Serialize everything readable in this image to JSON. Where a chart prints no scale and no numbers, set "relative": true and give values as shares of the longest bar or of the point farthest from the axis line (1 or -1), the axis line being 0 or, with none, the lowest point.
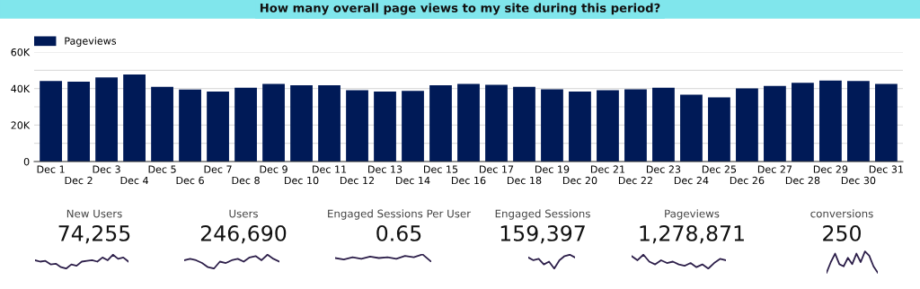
{
  "chart_data": [
    {
      "type": "bar",
      "title": "How many overall page views to my site during this period?",
      "categories": [
        "Dec 1",
        "Dec 2",
        "Dec 3",
        "Dec 4",
        "Dec 5",
        "Dec 6",
        "Dec 7",
        "Dec 8",
        "Dec 9",
        "Dec 10",
        "Dec 11",
        "Dec 12",
        "Dec 13",
        "Dec 14",
        "Dec 15",
        "Dec 16",
        "Dec 17",
        "Dec 18",
        "Dec 19",
        "Dec 20",
        "Dec 21",
        "Dec 22",
        "Dec 23",
        "Dec 24",
        "Dec 25",
        "Dec 26",
        "Dec 27",
        "Dec 28",
        "Dec 29",
        "Dec 30",
        "Dec 31"
      ],
      "series": [
        {
          "name": "Pageviews",
          "color": "#001a57",
          "values": [
            44200,
            43800,
            46100,
            47700,
            41000,
            39500,
            38300,
            40500,
            42600,
            41800,
            41800,
            39100,
            38300,
            38700,
            41800,
            42600,
            42100,
            41000,
            39600,
            38300,
            39100,
            39600,
            40500,
            36700,
            35200,
            40100,
            41400,
            43100,
            44400,
            44100,
            42600
          ]
        }
      ],
      "ylim": [
        0,
        60000
      ],
      "yticks": [
        0,
        {
          "value": 10000,
          "label": null
        },
        {
          "value": 20000,
          "label": "20K"
        },
        {
          "value": 30000,
          "label": null
        },
        {
          "value": 40000,
          "label": "40K"
        },
        {
          "value": 50000,
          "label": null
        },
        {
          "value": 60000,
          "label": "60K"
        }
      ],
      "grid": "y",
      "legend": "top left"
    },
    {
      "type": "line",
      "relative": true,
      "title": "New Users",
      "subtitle": "74,255",
      "categories": [
        null,
        null,
        null,
        null,
        null,
        null,
        null,
        null,
        null,
        null,
        null,
        null,
        null,
        null,
        null,
        null,
        null,
        null,
        null
      ],
      "series": [
        {
          "color": "#2d1f4a",
          "values": [
            0.6,
            0.5,
            0.55,
            0.3,
            0.35,
            0.1,
            0.0,
            0.3,
            0.2,
            0.5,
            0.55,
            0.6,
            0.5,
            0.8,
            0.6,
            1.0,
            0.7,
            0.8,
            0.5
          ]
        }
      ]
    },
    {
      "type": "line",
      "relative": true,
      "title": "Users",
      "subtitle": "246,690",
      "categories": [
        null,
        null,
        null,
        null,
        null,
        null,
        null,
        null,
        null,
        null,
        null,
        null,
        null,
        null,
        null,
        null,
        null
      ],
      "series": [
        {
          "color": "#2d1f4a",
          "values": [
            0.6,
            0.7,
            0.6,
            0.4,
            0.1,
            0.0,
            0.5,
            0.4,
            0.6,
            0.7,
            0.5,
            0.8,
            0.9,
            0.6,
            1.0,
            0.7,
            0.5
          ]
        }
      ]
    },
    {
      "type": "line",
      "relative": true,
      "title": "Engaged Sessions Per User",
      "subtitle": "0.65",
      "categories": [
        null,
        null,
        null,
        null,
        null,
        null,
        null,
        null,
        null,
        null,
        null,
        null
      ],
      "series": [
        {
          "color": "#2d1f4a",
          "values": [
            0.5,
            0.3,
            0.6,
            0.4,
            0.7,
            0.5,
            0.6,
            0.4,
            0.8,
            0.6,
            1.0,
            0.0
          ]
        }
      ]
    },
    {
      "type": "line",
      "relative": true,
      "title": "Engaged Sessions",
      "subtitle": "159,397",
      "categories": [
        null,
        null,
        null,
        null,
        null,
        null,
        null,
        null,
        null,
        null
      ],
      "series": [
        {
          "color": "#2d1f4a",
          "values": [
            0.8,
            0.6,
            0.7,
            0.3,
            0.5,
            0.0,
            0.6,
            0.9,
            1.0,
            0.8
          ]
        }
      ]
    },
    {
      "type": "line",
      "relative": true,
      "title": "Pageviews",
      "subtitle": "1,278,871",
      "categories": [
        null,
        null,
        null,
        null,
        null,
        null,
        null,
        null,
        null,
        null,
        null,
        null,
        null,
        null,
        null,
        null,
        null
      ],
      "series": [
        {
          "color": "#2d1f4a",
          "values": [
            0.9,
            0.6,
            1.0,
            0.5,
            0.3,
            0.6,
            0.4,
            0.5,
            0.3,
            0.2,
            0.4,
            0.1,
            0.3,
            0.0,
            0.4,
            0.7,
            0.6
          ]
        }
      ]
    },
    {
      "type": "line",
      "relative": true,
      "title": "conversions",
      "subtitle": "250",
      "categories": [
        null,
        null,
        null,
        null,
        null,
        null,
        null,
        null,
        null,
        null,
        null,
        null,
        null
      ],
      "series": [
        {
          "color": "#2d1f4a",
          "values": [
            0.0,
            0.5,
            0.9,
            0.4,
            0.3,
            0.7,
            0.4,
            0.9,
            0.5,
            1.0,
            0.8,
            0.3,
            0.0
          ]
        }
      ]
    }
  ]
}
